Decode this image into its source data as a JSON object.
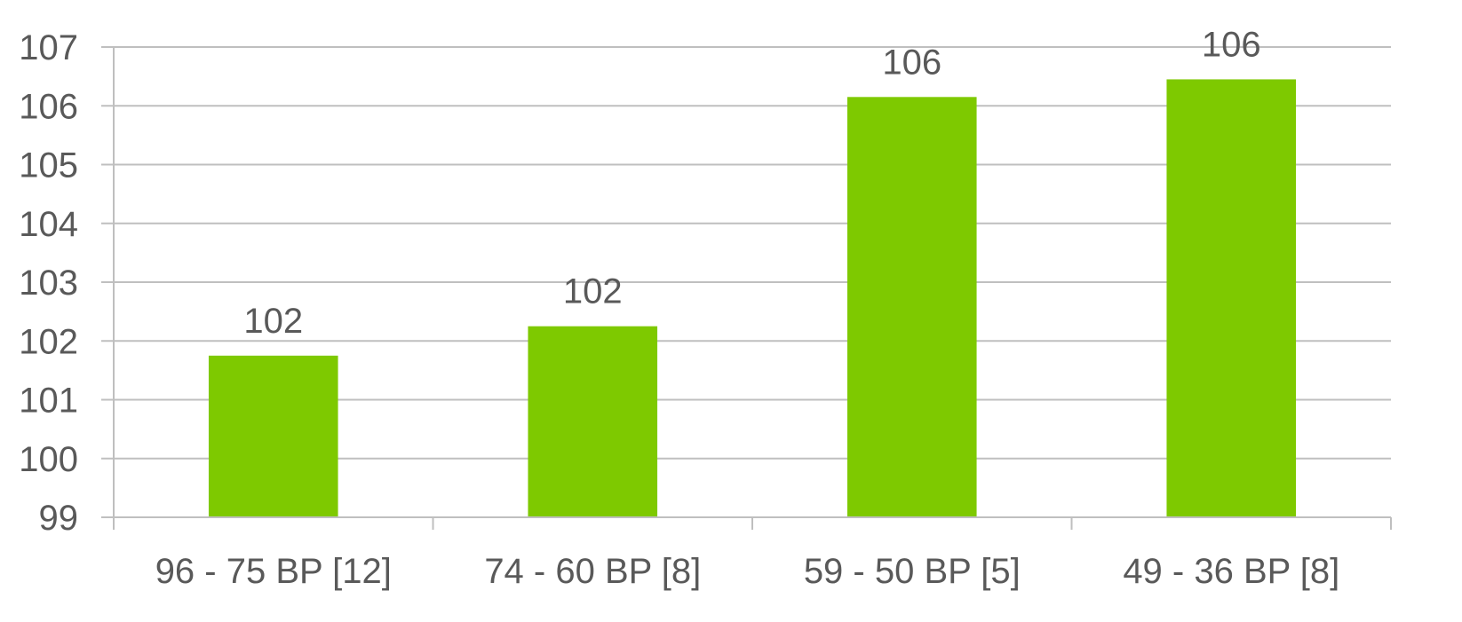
{
  "chart_data": {
    "type": "bar",
    "categories": [
      "96 - 75 BP [12]",
      "74 - 60 BP [8]",
      "59 - 50 BP [5]",
      "49 - 36 BP [8]"
    ],
    "values": [
      101.75,
      102.25,
      106.15,
      106.45
    ],
    "data_labels": [
      "102",
      "102",
      "106",
      "106"
    ],
    "ylim": [
      99,
      107
    ],
    "yticks": [
      99,
      100,
      101,
      102,
      103,
      104,
      105,
      106,
      107
    ],
    "grid": true,
    "bar_color": "#7ec900",
    "grid_color": "#bfbfbf",
    "text_color": "#595959"
  }
}
